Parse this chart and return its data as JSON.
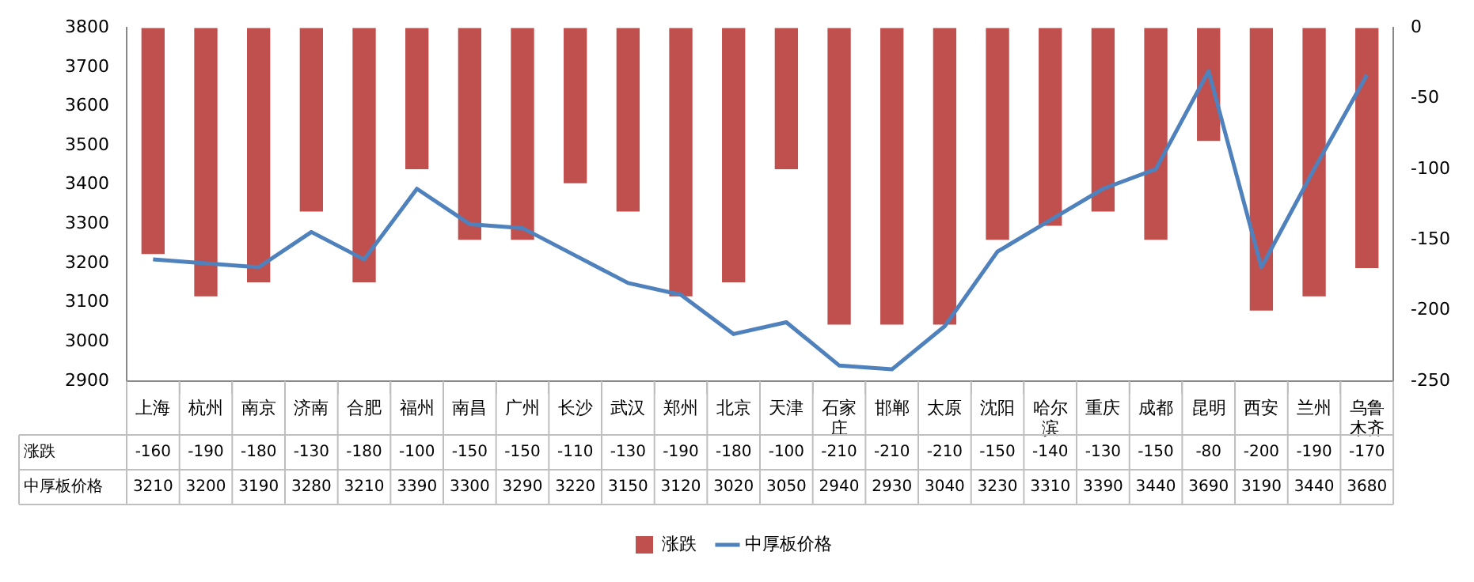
{
  "chart_data": {
    "type": "bar",
    "categories": [
      "上海",
      "杭州",
      "南京",
      "济南",
      "合肥",
      "福州",
      "南昌",
      "广州",
      "长沙",
      "武汉",
      "郑州",
      "北京",
      "天津",
      "石家庄",
      "邯郸",
      "太原",
      "沈阳",
      "哈尔滨",
      "重庆",
      "成都",
      "昆明",
      "西安",
      "兰州",
      "乌鲁木齐"
    ],
    "series": [
      {
        "name": "涨跌",
        "axis": "y2",
        "color": "#c0504d",
        "values": [
          -160,
          -190,
          -180,
          -130,
          -180,
          -100,
          -150,
          -150,
          -110,
          -130,
          -190,
          -180,
          -100,
          -210,
          -210,
          -210,
          -150,
          -140,
          -130,
          -150,
          -80,
          -200,
          -190,
          -170
        ]
      },
      {
        "name": "中厚板价格",
        "type": "line",
        "axis": "y",
        "color": "#4f81bd",
        "values": [
          3210,
          3200,
          3190,
          3280,
          3210,
          3390,
          3300,
          3290,
          3220,
          3150,
          3120,
          3020,
          3050,
          2940,
          2930,
          3040,
          3230,
          3310,
          3390,
          3440,
          3690,
          3190,
          3440,
          3680
        ]
      }
    ],
    "ylim": [
      2900,
      3800
    ],
    "yticks": [
      2900,
      3000,
      3100,
      3200,
      3300,
      3400,
      3500,
      3600,
      3700,
      3800
    ],
    "y2lim": [
      -250,
      0
    ],
    "y2ticks": [
      -250,
      -200,
      -150,
      -100,
      -50,
      0
    ],
    "legend": "bottom",
    "data_labels": true,
    "marker": "none"
  }
}
